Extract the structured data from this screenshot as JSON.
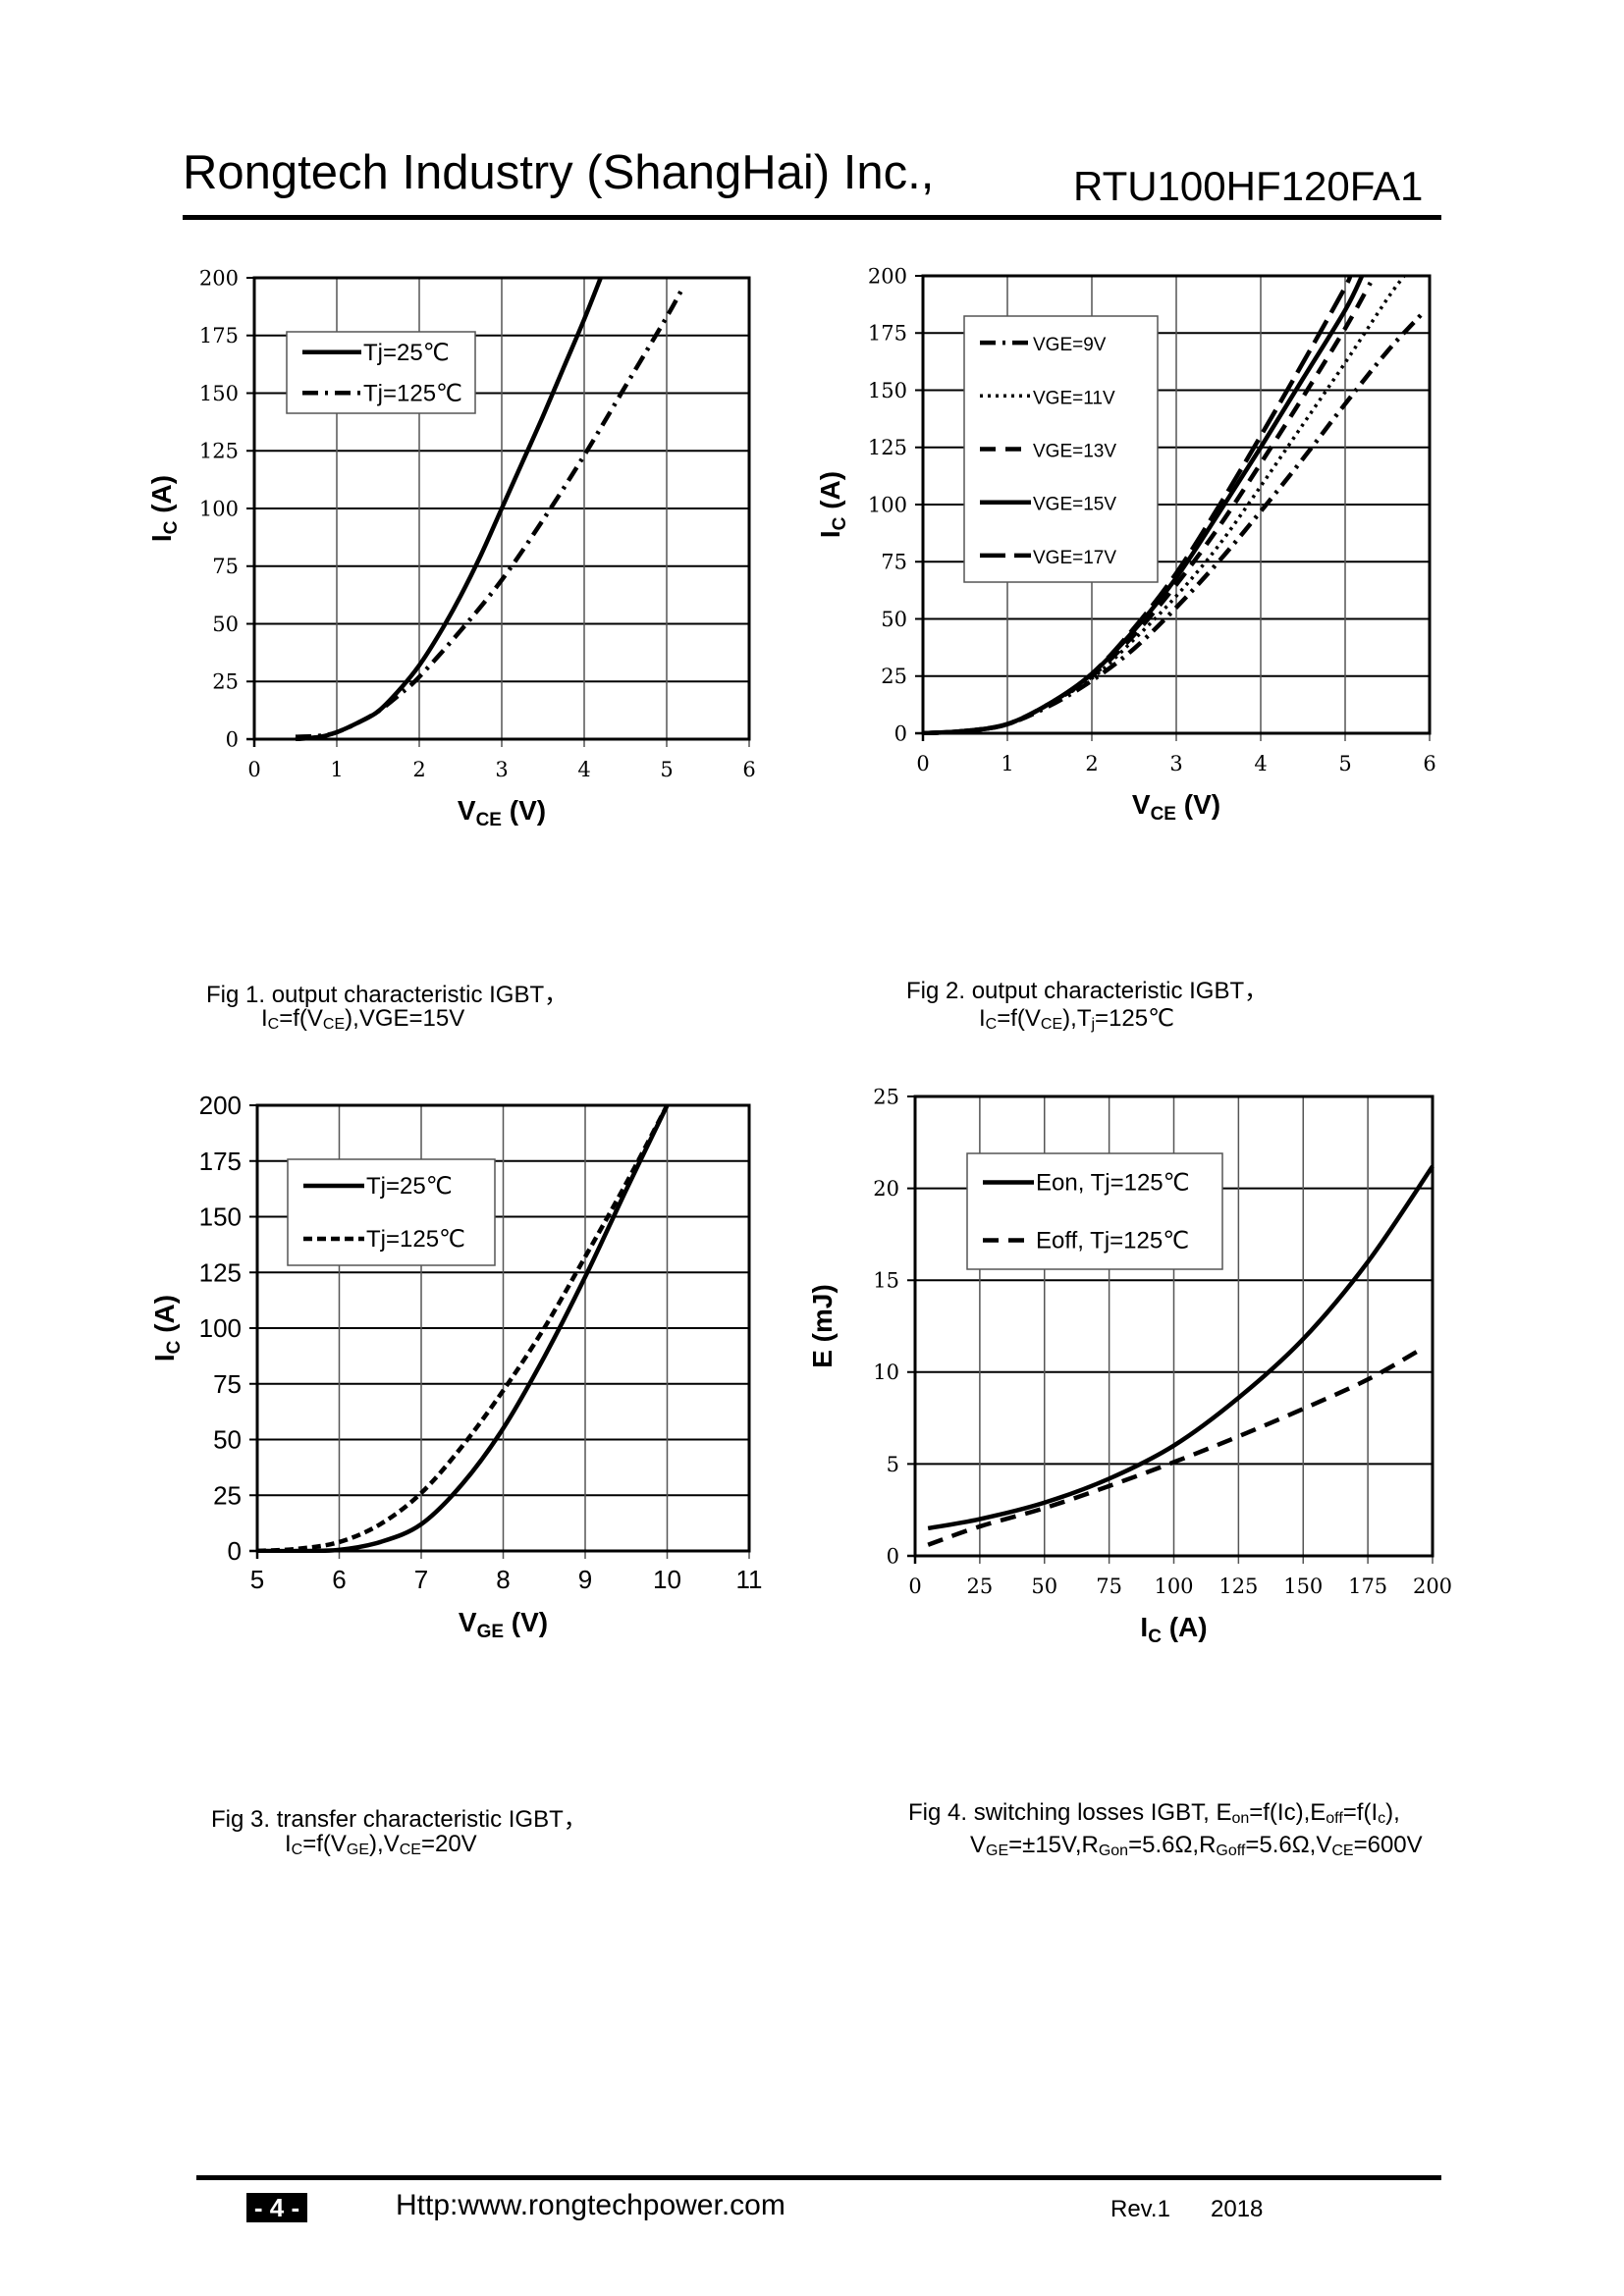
{
  "header": {
    "company": "Rongtech Industry (ShangHai) Inc.,",
    "part_number": "RTU100HF120FA1"
  },
  "footer": {
    "page": "- 4 -",
    "url": "Http:www.rongtechpower.com",
    "revision": "Rev.1",
    "year": "2018"
  },
  "captions": [
    {
      "line1": [
        {
          "t": "Fig 1. output characteristic IGBT，"
        }
      ],
      "line2": [
        {
          "t": "I"
        },
        {
          "t": "C",
          "sub": true
        },
        {
          "t": "=f(V"
        },
        {
          "t": "CE",
          "sub": true
        },
        {
          "t": "),VGE=15V"
        }
      ]
    },
    {
      "line1": [
        {
          "t": "Fig 2. output characteristic IGBT，"
        }
      ],
      "line2": [
        {
          "t": "I"
        },
        {
          "t": "C",
          "sub": true
        },
        {
          "t": "=f(V"
        },
        {
          "t": "CE",
          "sub": true
        },
        {
          "t": "),T"
        },
        {
          "t": "j",
          "sub": true
        },
        {
          "t": "=125℃"
        }
      ]
    },
    {
      "line1": [
        {
          "t": "Fig 3. transfer characteristic IGBT，"
        }
      ],
      "line2": [
        {
          "t": "I"
        },
        {
          "t": "C",
          "sub": true
        },
        {
          "t": "=f(V"
        },
        {
          "t": "GE",
          "sub": true
        },
        {
          "t": "),V"
        },
        {
          "t": "CE",
          "sub": true
        },
        {
          "t": "=20V"
        }
      ]
    },
    {
      "line1": [
        {
          "t": "Fig 4. switching losses IGBT, E"
        },
        {
          "t": "on",
          "sub": true
        },
        {
          "t": "=f(Ic),E"
        },
        {
          "t": "off",
          "sub": true
        },
        {
          "t": "=f(I"
        },
        {
          "t": "c",
          "sub": true
        },
        {
          "t": "),"
        }
      ],
      "line2": [
        {
          "t": "V"
        },
        {
          "t": "GE",
          "sub": true
        },
        {
          "t": "=±15V,R"
        },
        {
          "t": "Gon",
          "sub": true
        },
        {
          "t": "=5.6Ω,R"
        },
        {
          "t": "Goff",
          "sub": true
        },
        {
          "t": "=5.6Ω,V"
        },
        {
          "t": "CE",
          "sub": true
        },
        {
          "t": "=600V"
        }
      ]
    }
  ],
  "chart_data": [
    {
      "type": "line",
      "xlabel": {
        "main": "V",
        "sub": "CE",
        "unit": " (V)"
      },
      "ylabel": {
        "main": "I",
        "sub": "C",
        "unit": " (A)"
      },
      "xlim": [
        0,
        6
      ],
      "ylim": [
        0,
        200
      ],
      "xticks": [
        "0",
        "1",
        "2",
        "3",
        "4",
        "5",
        "6"
      ],
      "yticks": [
        "0",
        "25",
        "50",
        "75",
        "100",
        "125",
        "150",
        "175",
        "200"
      ],
      "grid": true,
      "legend": "top-left",
      "series": [
        {
          "name": "Tj=25℃",
          "style": "solid",
          "x": [
            0.5,
            0.8,
            1,
            1.25,
            1.5,
            1.75,
            2,
            2.25,
            2.5,
            2.75,
            3,
            3.25,
            3.5,
            3.75,
            4,
            4.2
          ],
          "y": [
            0,
            1,
            3,
            7,
            12,
            21,
            32,
            46,
            62,
            80,
            100,
            120,
            140,
            161,
            182,
            200
          ]
        },
        {
          "name": "Tj=125℃",
          "style": "dashdot",
          "x": [
            0.5,
            0.8,
            1,
            1.25,
            1.5,
            1.75,
            2,
            2.5,
            3,
            3.5,
            4,
            4.5,
            5,
            5.2
          ],
          "y": [
            1,
            1.5,
            3,
            7,
            12,
            19,
            27,
            47,
            69,
            95,
            123,
            153,
            183,
            196
          ]
        }
      ]
    },
    {
      "type": "line",
      "xlabel": {
        "main": "V",
        "sub": "CE",
        "unit": " (V)"
      },
      "ylabel": {
        "main": "I",
        "sub": "C",
        "unit": " (A)"
      },
      "xlim": [
        0,
        6
      ],
      "ylim": [
        0,
        200
      ],
      "xticks": [
        "0",
        "1",
        "2",
        "3",
        "4",
        "5",
        "6"
      ],
      "yticks": [
        "0",
        "25",
        "50",
        "75",
        "100",
        "125",
        "150",
        "175",
        "200"
      ],
      "grid": true,
      "legend": "top-left",
      "series": [
        {
          "name": "VGE=9V",
          "style": "dashdot",
          "x": [
            0,
            0.5,
            1,
            1.5,
            2,
            2.5,
            3,
            3.5,
            4,
            4.5,
            5,
            5.5,
            5.9
          ],
          "y": [
            0,
            1,
            4,
            12,
            23,
            37,
            55,
            75,
            97,
            120,
            144,
            167,
            183
          ]
        },
        {
          "name": "VGE=11V",
          "style": "dotted",
          "x": [
            0,
            0.5,
            1,
            1.5,
            2,
            2.5,
            3,
            3.5,
            4,
            4.5,
            5,
            5.5,
            5.7
          ],
          "y": [
            0,
            1,
            4,
            13,
            24,
            41,
            60,
            82,
            108,
            135,
            162,
            190,
            200
          ]
        },
        {
          "name": "VGE=13V",
          "style": "dashed",
          "x": [
            0,
            0.5,
            1,
            1.5,
            2,
            2.5,
            3,
            3.5,
            4,
            4.5,
            5,
            5.3
          ],
          "y": [
            0,
            1,
            4,
            13,
            25,
            43,
            65,
            90,
            118,
            147,
            177,
            197
          ]
        },
        {
          "name": "VGE=15V",
          "style": "solid",
          "x": [
            0,
            0.5,
            1,
            1.5,
            2,
            2.5,
            3,
            3.5,
            4,
            4.5,
            5,
            5.2
          ],
          "y": [
            0,
            1,
            4,
            13,
            26,
            45,
            68,
            96,
            125,
            155,
            185,
            200
          ]
        },
        {
          "name": "VGE=17V",
          "style": "longdash",
          "x": [
            0,
            0.5,
            1,
            1.5,
            2,
            2.5,
            3,
            3.5,
            4,
            4.5,
            5,
            5.05
          ],
          "y": [
            0,
            1,
            4,
            13,
            26,
            46,
            70,
            99,
            130,
            162,
            195,
            200
          ]
        }
      ]
    },
    {
      "type": "line",
      "xlabel": {
        "main": "V",
        "sub": "GE",
        "unit": " (V)"
      },
      "ylabel": {
        "main": "I",
        "sub": "C",
        "unit": " (A)"
      },
      "xlim": [
        5,
        11
      ],
      "ylim": [
        0,
        200
      ],
      "xticks": [
        "5",
        "6",
        "7",
        "8",
        "9",
        "10",
        "11"
      ],
      "yticks": [
        "0",
        "25",
        "50",
        "75",
        "100",
        "125",
        "150",
        "175",
        "200"
      ],
      "grid": true,
      "legend": "top-left",
      "series": [
        {
          "name": "Tj=25℃",
          "style": "solid",
          "x": [
            5,
            5.5,
            6,
            6.5,
            7,
            7.5,
            8,
            8.5,
            9,
            9.5,
            10
          ],
          "y": [
            0,
            0,
            0.5,
            4,
            12,
            30,
            55,
            87,
            123,
            162,
            200
          ]
        },
        {
          "name": "Tj=125℃",
          "style": "shortdash",
          "x": [
            5,
            5.5,
            6,
            6.5,
            7,
            7.5,
            8,
            8.5,
            9,
            9.5,
            10
          ],
          "y": [
            0,
            1,
            4,
            12,
            26,
            47,
            72,
            100,
            132,
            165,
            200
          ]
        }
      ]
    },
    {
      "type": "line",
      "xlabel": {
        "main": "I",
        "sub": "C",
        "unit": " (A)"
      },
      "ylabel": {
        "main": "E (mJ)",
        "sub": "",
        "unit": ""
      },
      "xlim": [
        0,
        200
      ],
      "ylim": [
        0,
        25
      ],
      "xticks": [
        "0",
        "25",
        "50",
        "75",
        "100",
        "125",
        "150",
        "175",
        "200"
      ],
      "yticks": [
        "0",
        "5",
        "10",
        "15",
        "20",
        "25"
      ],
      "grid": true,
      "legend": "top-left",
      "series": [
        {
          "name": "Eon, Tj=125℃",
          "style": "solid",
          "x": [
            5,
            25,
            50,
            75,
            100,
            125,
            150,
            175,
            200
          ],
          "y": [
            1.5,
            2.0,
            2.9,
            4.2,
            6.0,
            8.6,
            11.8,
            16.0,
            21.2
          ]
        },
        {
          "name": "Eoff, Tj=125℃",
          "style": "dashed",
          "x": [
            5,
            25,
            50,
            75,
            100,
            125,
            150,
            175,
            195
          ],
          "y": [
            0.6,
            1.6,
            2.6,
            3.8,
            5.1,
            6.5,
            8.0,
            9.6,
            11.2
          ]
        }
      ]
    }
  ]
}
